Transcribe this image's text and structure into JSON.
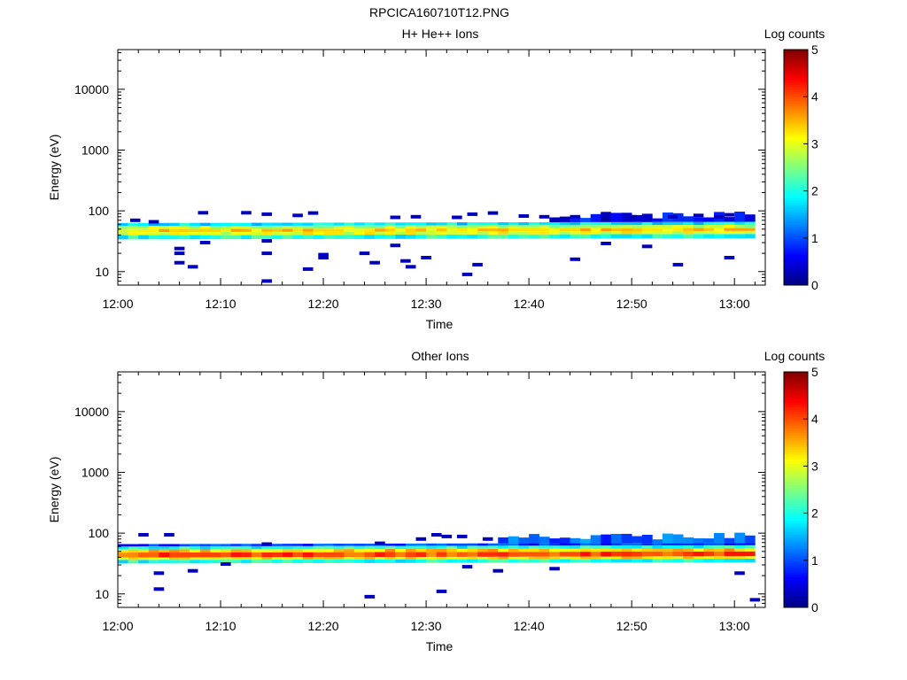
{
  "figure_title": "RPCICA160710T12.PNG",
  "chart_data": [
    {
      "type": "heatmap",
      "title": "H+ He++ Ions",
      "xlabel": "Time",
      "ylabel": "Energy (eV)",
      "x_tick_labels": [
        "12:00",
        "12:10",
        "12:20",
        "12:30",
        "12:40",
        "12:50",
        "13:00"
      ],
      "y_tick_labels": [
        "10",
        "100",
        "1000",
        "10000"
      ],
      "y_scale": "log",
      "ylim": [
        6,
        45000
      ],
      "xlim_minutes": [
        0,
        63
      ],
      "colorbar": {
        "label": "Log counts",
        "range": [
          0,
          5
        ],
        "ticks": [
          "0",
          "1",
          "2",
          "3",
          "4",
          "5"
        ]
      },
      "bands": [
        {
          "log_energy": [
            1.53,
            1.6
          ],
          "value": 2.0
        },
        {
          "log_energy": [
            1.6,
            1.65
          ],
          "value": 3.0
        },
        {
          "log_energy": [
            1.65,
            1.7
          ],
          "value": 3.3
        },
        {
          "log_energy": [
            1.7,
            1.75
          ],
          "value": 2.8
        },
        {
          "log_energy": [
            1.75,
            1.8
          ],
          "value": 1.8
        }
      ],
      "upper_fringe_value": 0.6,
      "upper_fringe_start_minutes": 42,
      "sparse_pixels": [
        {
          "t": 1.2,
          "e": 70,
          "v": 0.3
        },
        {
          "t": 3.0,
          "e": 66,
          "v": 0.3
        },
        {
          "t": 7.8,
          "e": 93,
          "v": 0.3
        },
        {
          "t": 12.0,
          "e": 93,
          "v": 0.3
        },
        {
          "t": 14.0,
          "e": 88,
          "v": 0.3
        },
        {
          "t": 17.0,
          "e": 84,
          "v": 0.3
        },
        {
          "t": 18.5,
          "e": 92,
          "v": 0.3
        },
        {
          "t": 26.5,
          "e": 78,
          "v": 0.3
        },
        {
          "t": 28.5,
          "e": 80,
          "v": 0.3
        },
        {
          "t": 32.5,
          "e": 78,
          "v": 0.3
        },
        {
          "t": 34.0,
          "e": 88,
          "v": 0.3
        },
        {
          "t": 36.0,
          "e": 92,
          "v": 0.3
        },
        {
          "t": 39.0,
          "e": 82,
          "v": 0.3
        },
        {
          "t": 41.0,
          "e": 80,
          "v": 0.3
        },
        {
          "t": 44.0,
          "e": 80,
          "v": 0.3
        },
        {
          "t": 47.0,
          "e": 90,
          "v": 0.3
        },
        {
          "t": 49.5,
          "e": 80,
          "v": 0.3
        },
        {
          "t": 53.5,
          "e": 80,
          "v": 0.3
        },
        {
          "t": 56.0,
          "e": 84,
          "v": 0.3
        },
        {
          "t": 58.0,
          "e": 80,
          "v": 0.3
        },
        {
          "t": 59.0,
          "e": 86,
          "v": 0.3
        },
        {
          "t": 5.5,
          "e": 24,
          "v": 0.3
        },
        {
          "t": 5.5,
          "e": 20,
          "v": 0.3
        },
        {
          "t": 5.5,
          "e": 14,
          "v": 0.3
        },
        {
          "t": 6.8,
          "e": 12,
          "v": 0.3
        },
        {
          "t": 8.0,
          "e": 30,
          "v": 0.3
        },
        {
          "t": 14.0,
          "e": 32,
          "v": 0.3
        },
        {
          "t": 14.0,
          "e": 20,
          "v": 0.3
        },
        {
          "t": 14.0,
          "e": 7,
          "v": 0.3
        },
        {
          "t": 18.0,
          "e": 11,
          "v": 0.3
        },
        {
          "t": 19.5,
          "e": 19,
          "v": 0.3
        },
        {
          "t": 19.5,
          "e": 17,
          "v": 0.3
        },
        {
          "t": 23.5,
          "e": 20,
          "v": 0.3
        },
        {
          "t": 24.5,
          "e": 14,
          "v": 0.3
        },
        {
          "t": 26.5,
          "e": 27,
          "v": 0.3
        },
        {
          "t": 27.5,
          "e": 15,
          "v": 0.3
        },
        {
          "t": 28.0,
          "e": 12,
          "v": 0.3
        },
        {
          "t": 29.5,
          "e": 17,
          "v": 0.3
        },
        {
          "t": 33.5,
          "e": 9,
          "v": 0.3
        },
        {
          "t": 34.5,
          "e": 13,
          "v": 0.3
        },
        {
          "t": 44.0,
          "e": 16,
          "v": 0.3
        },
        {
          "t": 47.0,
          "e": 29,
          "v": 0.3
        },
        {
          "t": 51.0,
          "e": 26,
          "v": 0.3
        },
        {
          "t": 54.0,
          "e": 13,
          "v": 0.3
        },
        {
          "t": 59.0,
          "e": 17,
          "v": 0.3
        }
      ]
    },
    {
      "type": "heatmap",
      "title": "Other Ions",
      "xlabel": "Time",
      "ylabel": "Energy (eV)",
      "x_tick_labels": [
        "12:00",
        "12:10",
        "12:20",
        "12:30",
        "12:40",
        "12:50",
        "13:00"
      ],
      "y_tick_labels": [
        "10",
        "100",
        "1000",
        "10000"
      ],
      "y_scale": "log",
      "ylim": [
        6,
        45000
      ],
      "xlim_minutes": [
        0,
        63
      ],
      "colorbar": {
        "label": "Log counts",
        "range": [
          0,
          5
        ],
        "ticks": [
          "0",
          "1",
          "2",
          "3",
          "4",
          "5"
        ]
      },
      "bands": [
        {
          "log_energy": [
            1.5,
            1.56
          ],
          "value": 2.0
        },
        {
          "log_energy": [
            1.56,
            1.6
          ],
          "value": 3.2
        },
        {
          "log_energy": [
            1.6,
            1.68
          ],
          "value": 4.0
        },
        {
          "log_energy": [
            1.68,
            1.73
          ],
          "value": 3.4
        },
        {
          "log_energy": [
            1.73,
            1.78
          ],
          "value": 2.0
        },
        {
          "log_energy": [
            1.78,
            1.82
          ],
          "value": 0.9
        }
      ],
      "upper_fringe_value": 1.1,
      "upper_fringe_start_minutes": 37,
      "sparse_pixels": [
        {
          "t": 2.0,
          "e": 94,
          "v": 0.3
        },
        {
          "t": 4.5,
          "e": 94,
          "v": 0.3
        },
        {
          "t": 14.0,
          "e": 66,
          "v": 0.3
        },
        {
          "t": 25.0,
          "e": 68,
          "v": 0.3
        },
        {
          "t": 29.0,
          "e": 80,
          "v": 0.3
        },
        {
          "t": 30.5,
          "e": 94,
          "v": 0.3
        },
        {
          "t": 31.5,
          "e": 88,
          "v": 0.3
        },
        {
          "t": 33.0,
          "e": 88,
          "v": 0.3
        },
        {
          "t": 35.5,
          "e": 80,
          "v": 0.3
        },
        {
          "t": 3.5,
          "e": 22,
          "v": 0.3
        },
        {
          "t": 3.5,
          "e": 12,
          "v": 0.3
        },
        {
          "t": 6.8,
          "e": 24,
          "v": 0.3
        },
        {
          "t": 10.0,
          "e": 31,
          "v": 0.3
        },
        {
          "t": 24.0,
          "e": 9,
          "v": 0.3
        },
        {
          "t": 31.0,
          "e": 11,
          "v": 0.3
        },
        {
          "t": 33.5,
          "e": 28,
          "v": 0.3
        },
        {
          "t": 36.5,
          "e": 24,
          "v": 0.3
        },
        {
          "t": 42.0,
          "e": 26,
          "v": 0.3
        },
        {
          "t": 60.0,
          "e": 22,
          "v": 0.3
        },
        {
          "t": 61.5,
          "e": 8,
          "v": 0.3
        }
      ]
    }
  ]
}
